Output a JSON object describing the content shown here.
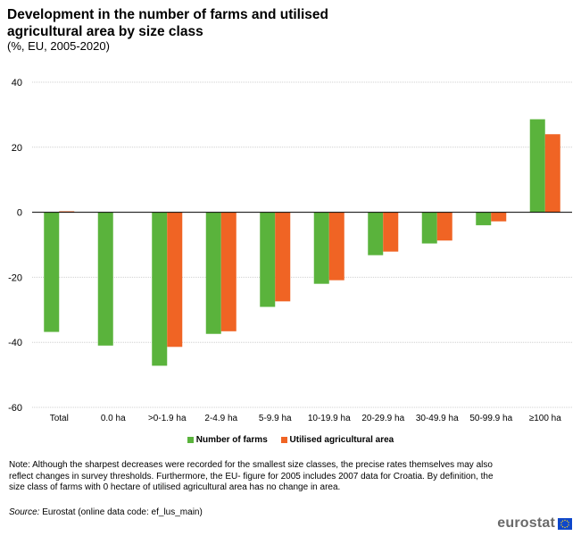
{
  "chart_data": {
    "type": "bar",
    "title": "Development in the number of farms and utilised agricultural area by size class",
    "subtitle": "(%, EU, 2005-2020)",
    "categories": [
      "Total",
      "0.0 ha",
      ">0-1.9 ha",
      "2-4.9 ha",
      "5-9.9 ha",
      "10-19.9 ha",
      "20-29.9 ha",
      "30-49.9 ha",
      "50-99.9 ha",
      "≥100 ha"
    ],
    "series": [
      {
        "name": "Number of farms",
        "color": "#5ab33c",
        "values": [
          -36.8,
          -41.0,
          -47.2,
          -37.4,
          -29.1,
          -22.0,
          -13.2,
          -9.6,
          -4.0,
          28.6
        ]
      },
      {
        "name": "Utilised agricultural area",
        "color": "#f06424",
        "values": [
          0.3,
          0.0,
          -41.4,
          -36.6,
          -27.4,
          -20.9,
          -12.1,
          -8.7,
          -2.8,
          24.0
        ]
      }
    ],
    "ylim": [
      -60,
      40
    ],
    "yticks": [
      40,
      20,
      0,
      -20,
      -40,
      -60
    ],
    "xlabel": "",
    "ylabel": "",
    "grid": true,
    "legend": "bottom"
  },
  "note": "Note: Although the sharpest decreases were recorded for the smallest size classes, the precise rates themselves may also reflect changes in survey thresholds. Furthermore, the EU- figure for 2005 includes 2007 data for Croatia. By definition, the size class of farms with 0 hectare of utilised agricultural area has no change in area.",
  "source": {
    "label": "Source:",
    "text": "Eurostat (online data code: ef_lus_main)"
  },
  "logo": {
    "text": "eurostat"
  }
}
